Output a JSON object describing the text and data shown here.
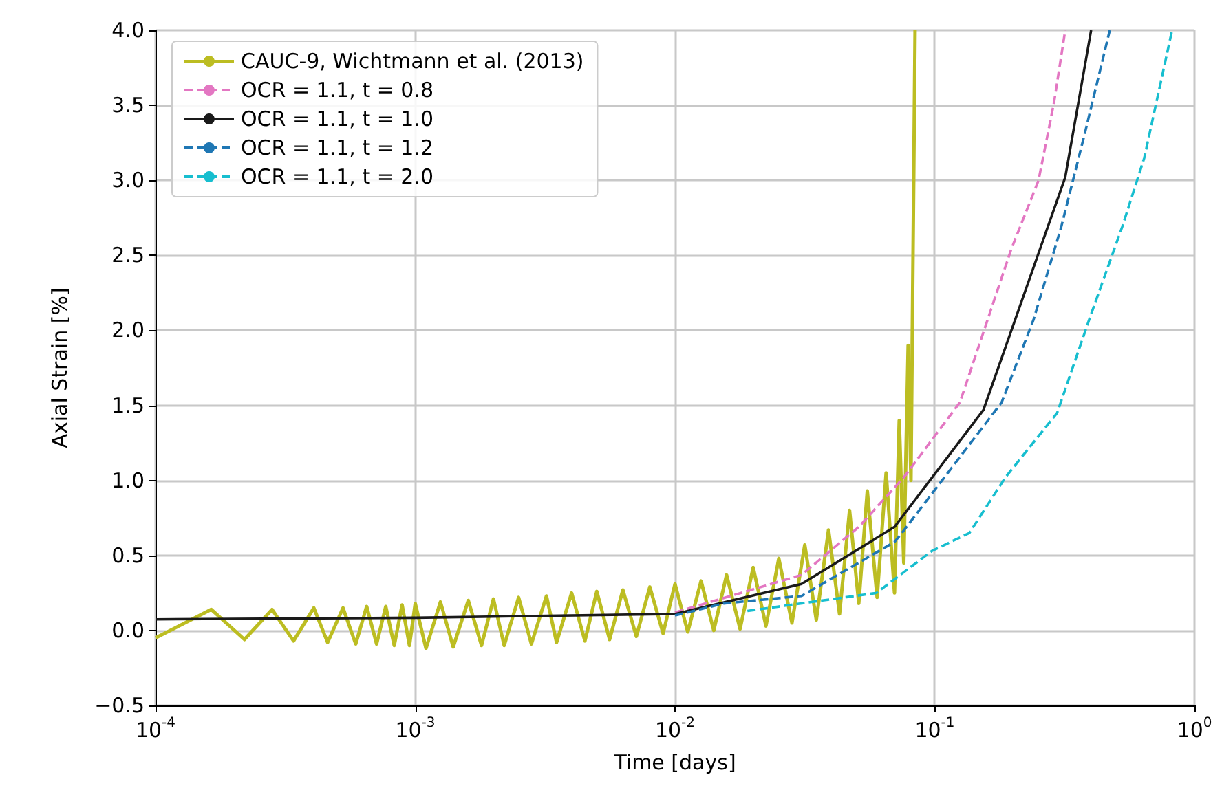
{
  "chart_data": {
    "type": "line",
    "xlabel": "Time [days]",
    "ylabel": "Axial Strain [%]",
    "log": "x",
    "grid": true,
    "legend": "top left",
    "marker": "none",
    "xlim": [
      0.0001,
      1
    ],
    "ylim": [
      -0.5,
      4.0
    ],
    "xticks": [
      {
        "value": 0.0001,
        "label": "10$^{-4}$"
      },
      {
        "value": 0.001,
        "label": "10$^{-3}$"
      },
      {
        "value": 0.01,
        "label": "10$^{-2}$"
      },
      {
        "value": 0.1,
        "label": "10$^{-1}$"
      },
      {
        "value": 1,
        "label": "10$^{0}$"
      }
    ],
    "yticks": [
      {
        "value": -0.5,
        "label": "−0.5"
      },
      {
        "value": 0,
        "label": "0.0"
      },
      {
        "value": 0.5,
        "label": "0.5"
      },
      {
        "value": 1,
        "label": "1.0"
      },
      {
        "value": 1.5,
        "label": "1.5"
      },
      {
        "value": 2,
        "label": "2.0"
      },
      {
        "value": 2.5,
        "label": "2.5"
      },
      {
        "value": 3,
        "label": "3.0"
      },
      {
        "value": 3.5,
        "label": "3.5"
      },
      {
        "value": 4,
        "label": "4.0"
      }
    ],
    "series": [
      {
        "name": "CAUC-9, Wichtmann et al. (2013)",
        "color": "#bcbd22",
        "line_style": "solid",
        "x": [
          0.0001,
          0.000164,
          0.00022,
          0.000281,
          0.00034,
          0.000407,
          0.00046,
          0.000527,
          0.00059,
          0.00065,
          0.00071,
          0.00077,
          0.00083,
          0.00089,
          0.00095,
          0.001,
          0.0011,
          0.00125,
          0.0014,
          0.0016,
          0.0018,
          0.002,
          0.0022,
          0.0025,
          0.0028,
          0.0032,
          0.0035,
          0.004,
          0.0045,
          0.005,
          0.0056,
          0.0063,
          0.0071,
          0.008,
          0.009,
          0.01,
          0.0112,
          0.0126,
          0.0141,
          0.0158,
          0.0178,
          0.02,
          0.0224,
          0.0251,
          0.0282,
          0.0316,
          0.035,
          0.039,
          0.043,
          0.047,
          0.051,
          0.055,
          0.06,
          0.065,
          0.07,
          0.073,
          0.076,
          0.079,
          0.081,
          0.083,
          0.084
        ],
        "values": [
          -0.05,
          0.14,
          -0.06,
          0.14,
          -0.07,
          0.15,
          -0.08,
          0.15,
          -0.09,
          0.16,
          -0.09,
          0.16,
          -0.1,
          0.17,
          -0.1,
          0.18,
          -0.12,
          0.19,
          -0.11,
          0.2,
          -0.1,
          0.21,
          -0.1,
          0.22,
          -0.09,
          0.23,
          -0.08,
          0.25,
          -0.07,
          0.26,
          -0.06,
          0.27,
          -0.04,
          0.29,
          -0.02,
          0.31,
          -0.01,
          0.33,
          0.0,
          0.37,
          0.01,
          0.42,
          0.03,
          0.48,
          0.05,
          0.57,
          0.07,
          0.67,
          0.11,
          0.8,
          0.18,
          0.93,
          0.22,
          1.05,
          0.25,
          1.4,
          0.45,
          1.9,
          1.0,
          3.0,
          4.0
        ]
      },
      {
        "name": "OCR = 1.1, t = 0.8",
        "color": "#e377c2",
        "line_style": "dashed",
        "x": [
          0.01,
          0.0307,
          0.051,
          0.076,
          0.125,
          0.197,
          0.251,
          0.288,
          0.318
        ],
        "values": [
          0.12,
          0.37,
          0.69,
          1.02,
          1.52,
          2.54,
          3.0,
          3.52,
          4.0
        ]
      },
      {
        "name": "OCR = 1.1, t = 1.0",
        "color": "#1a1a1a",
        "line_style": "solid",
        "x": [
          0.0001,
          0.001,
          0.01,
          0.0307,
          0.07,
          0.154,
          0.318,
          0.4
        ],
        "values": [
          0.074,
          0.085,
          0.11,
          0.31,
          0.69,
          1.47,
          3.02,
          4.0
        ]
      },
      {
        "name": "OCR = 1.1, t = 1.2",
        "color": "#1f77b4",
        "line_style": "dashed",
        "x": [
          0.01,
          0.0154,
          0.0307,
          0.07,
          0.074,
          0.181,
          0.24,
          0.307,
          0.378,
          0.472
        ],
        "values": [
          0.1,
          0.18,
          0.23,
          0.59,
          0.64,
          1.52,
          2.07,
          2.69,
          3.31,
          4.0
        ]
      },
      {
        "name": "OCR = 1.1, t = 2.0",
        "color": "#17becf",
        "line_style": "dashed",
        "x": [
          0.019,
          0.0596,
          0.0976,
          0.136,
          0.187,
          0.296,
          0.393,
          0.527,
          0.641,
          0.82
        ],
        "values": [
          0.13,
          0.25,
          0.53,
          0.65,
          1.02,
          1.45,
          2.07,
          2.69,
          3.15,
          4.0
        ]
      }
    ]
  }
}
